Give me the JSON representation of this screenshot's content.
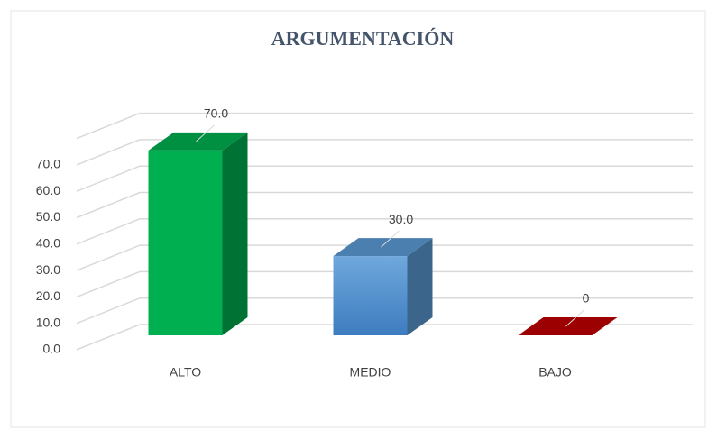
{
  "chart_data": {
    "type": "bar3d",
    "title": "ARGUMENTACIÓN",
    "categories": [
      "ALTO",
      "MEDIO",
      "BAJO"
    ],
    "values": [
      70,
      30,
      0
    ],
    "value_labels": [
      "70.0",
      "30.0",
      "0"
    ],
    "colors": [
      "#00b050",
      "#5b9bd5",
      "#c00000"
    ],
    "ylim": [
      0,
      80
    ],
    "yticks": [
      {
        "value": 0,
        "label": "0.0"
      },
      {
        "value": 10,
        "label": "10.0"
      },
      {
        "value": 20,
        "label": "20.0"
      },
      {
        "value": 30,
        "label": "30.0"
      },
      {
        "value": 40,
        "label": "40.0"
      },
      {
        "value": 50,
        "label": "50.0"
      },
      {
        "value": 60,
        "label": "60.0"
      },
      {
        "value": 70,
        "label": "70.0"
      }
    ],
    "grid": true
  }
}
